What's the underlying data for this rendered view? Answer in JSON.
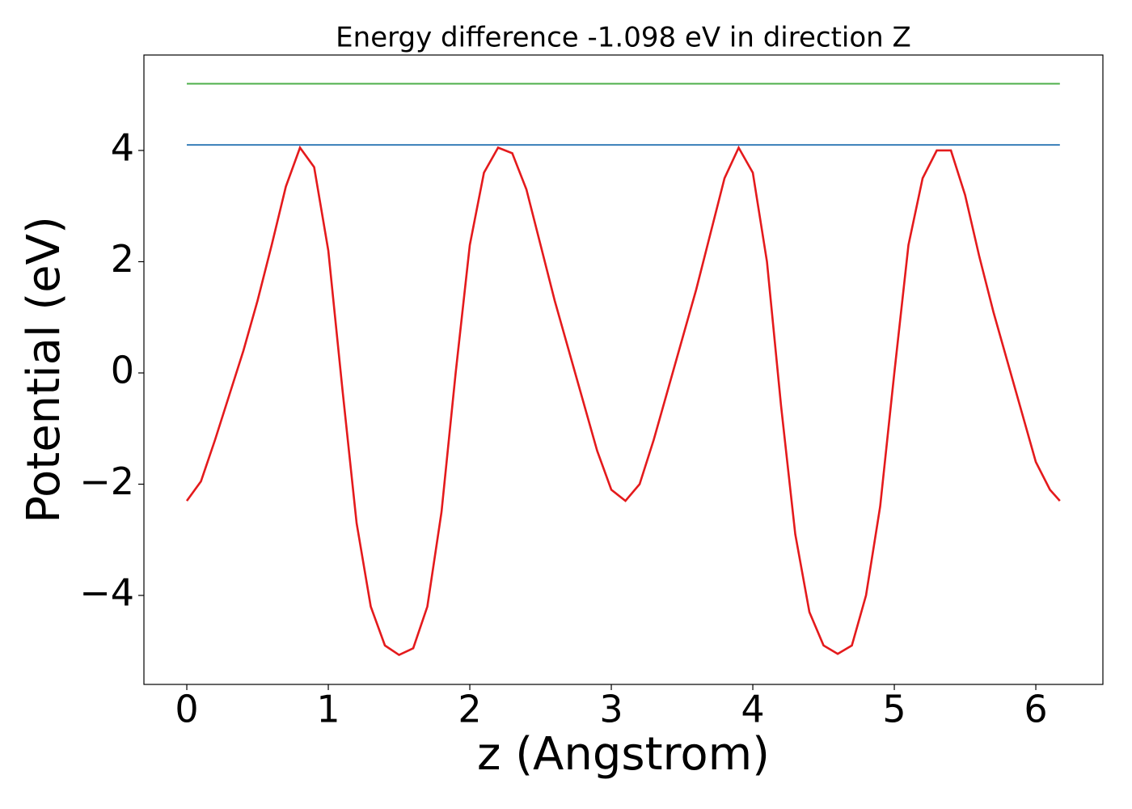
{
  "chart_data": {
    "type": "line",
    "title": "Energy difference -1.098 eV in direction Z",
    "x_label": "z (Angstrom)",
    "y_label": "Potential (eV)",
    "xlim": [
      -0.303,
      6.474
    ],
    "ylim": [
      -5.6,
      5.716
    ],
    "xticks": [
      0,
      1,
      2,
      3,
      4,
      5,
      6
    ],
    "yticks": [
      {
        "value": -4,
        "label": "−4"
      },
      {
        "value": -2,
        "label": "−2"
      },
      0,
      2,
      4
    ],
    "grid": false,
    "series": [
      {
        "color": "#e41a1c",
        "x": [
          0,
          0.1,
          0.2,
          0.3,
          0.4,
          0.5,
          0.6,
          0.7,
          0.8,
          0.9,
          1.0,
          1.1,
          1.2,
          1.3,
          1.4,
          1.5,
          1.6,
          1.7,
          1.8,
          1.9,
          2.0,
          2.1,
          2.2,
          2.3,
          2.4,
          2.5,
          2.6,
          2.7,
          2.8,
          2.9,
          3.0,
          3.1,
          3.2,
          3.3,
          3.4,
          3.5,
          3.6,
          3.7,
          3.8,
          3.9,
          4.0,
          4.1,
          4.2,
          4.3,
          4.4,
          4.5,
          4.6,
          4.7,
          4.8,
          4.9,
          5.0,
          5.1,
          5.2,
          5.3,
          5.4,
          5.5,
          5.6,
          5.7,
          5.8,
          5.9,
          6.0,
          6.1,
          6.17
        ],
        "values": [
          -2.3,
          -1.95,
          -1.2,
          -0.4,
          0.4,
          1.3,
          2.3,
          3.35,
          4.05,
          3.7,
          2.2,
          -0.3,
          -2.7,
          -4.2,
          -4.9,
          -5.07,
          -4.95,
          -4.2,
          -2.5,
          0.0,
          2.3,
          3.6,
          4.05,
          3.95,
          3.3,
          2.3,
          1.3,
          0.4,
          -0.5,
          -1.4,
          -2.1,
          -2.3,
          -2.0,
          -1.2,
          -0.3,
          0.6,
          1.5,
          2.5,
          3.5,
          4.05,
          3.6,
          2.0,
          -0.6,
          -2.9,
          -4.3,
          -4.9,
          -5.05,
          -4.9,
          -4.0,
          -2.4,
          0.0,
          2.3,
          3.5,
          4.0,
          4.0,
          3.2,
          2.1,
          1.1,
          0.2,
          -0.7,
          -1.6,
          -2.1,
          -2.3
        ]
      },
      {
        "color": "#377eb8",
        "x": [
          0,
          6.17
        ],
        "values": [
          4.1,
          4.1
        ]
      },
      {
        "color": "#4daf4a",
        "x": [
          0,
          6.17
        ],
        "values": [
          5.2,
          5.2
        ]
      }
    ]
  }
}
